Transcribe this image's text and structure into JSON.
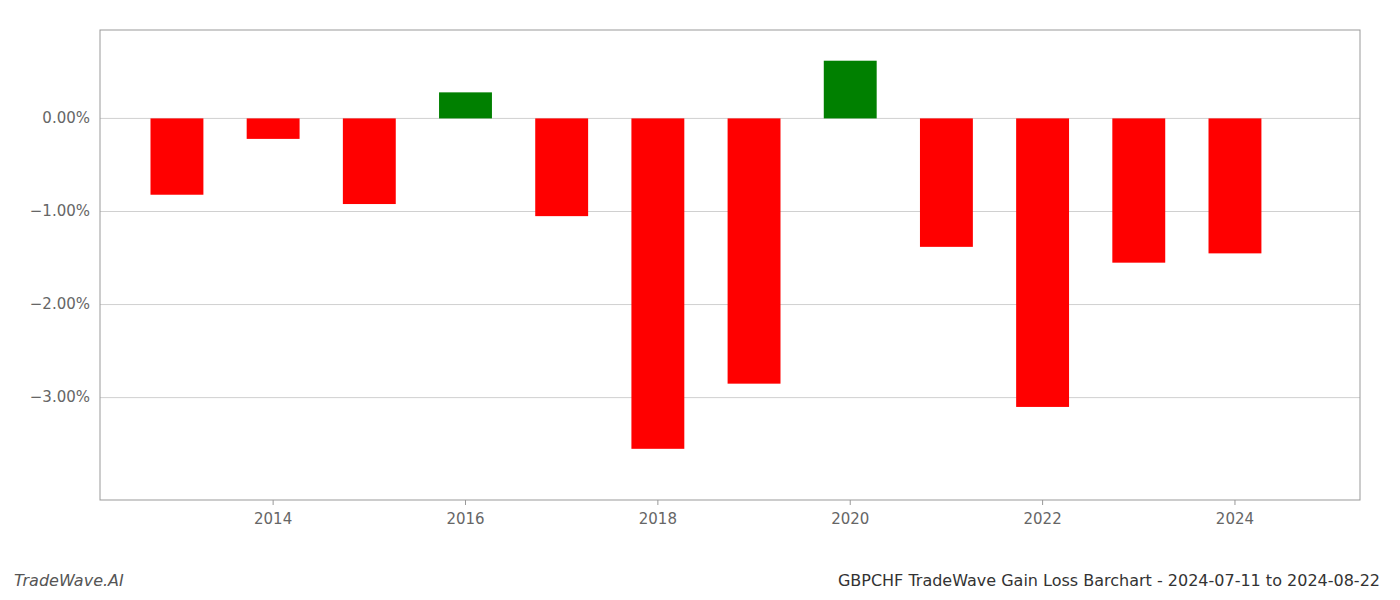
{
  "chart_data": {
    "type": "bar",
    "title": "GBPCHF TradeWave Gain Loss Barchart - 2024-07-11 to 2024-08-22",
    "annotations": [
      "TradeWave.AI"
    ],
    "x": [
      2013,
      2014,
      2015,
      2016,
      2017,
      2018,
      2019,
      2020,
      2021,
      2022,
      2023,
      2024
    ],
    "values": [
      -0.82,
      -0.22,
      -0.92,
      0.28,
      -1.05,
      -3.55,
      -2.85,
      0.62,
      -1.38,
      -3.1,
      -1.55,
      -1.45
    ],
    "colors": [
      "#ff0000",
      "#ff0000",
      "#ff0000",
      "#008000",
      "#ff0000",
      "#ff0000",
      "#ff0000",
      "#008000",
      "#ff0000",
      "#ff0000",
      "#ff0000",
      "#ff0000"
    ],
    "xlim": [
      2012.2,
      2025.3
    ],
    "xticks": [
      2014,
      2016,
      2018,
      2020,
      2022,
      2024
    ],
    "ylim": [
      -4.1,
      0.95
    ],
    "yticks": [
      {
        "value": 0.0,
        "label": "0.00%"
      },
      {
        "value": -1.0,
        "label": "−1.00%"
      },
      {
        "value": -2.0,
        "label": "−2.00%"
      },
      {
        "value": -3.0,
        "label": "−3.00%"
      }
    ],
    "grid": true
  }
}
